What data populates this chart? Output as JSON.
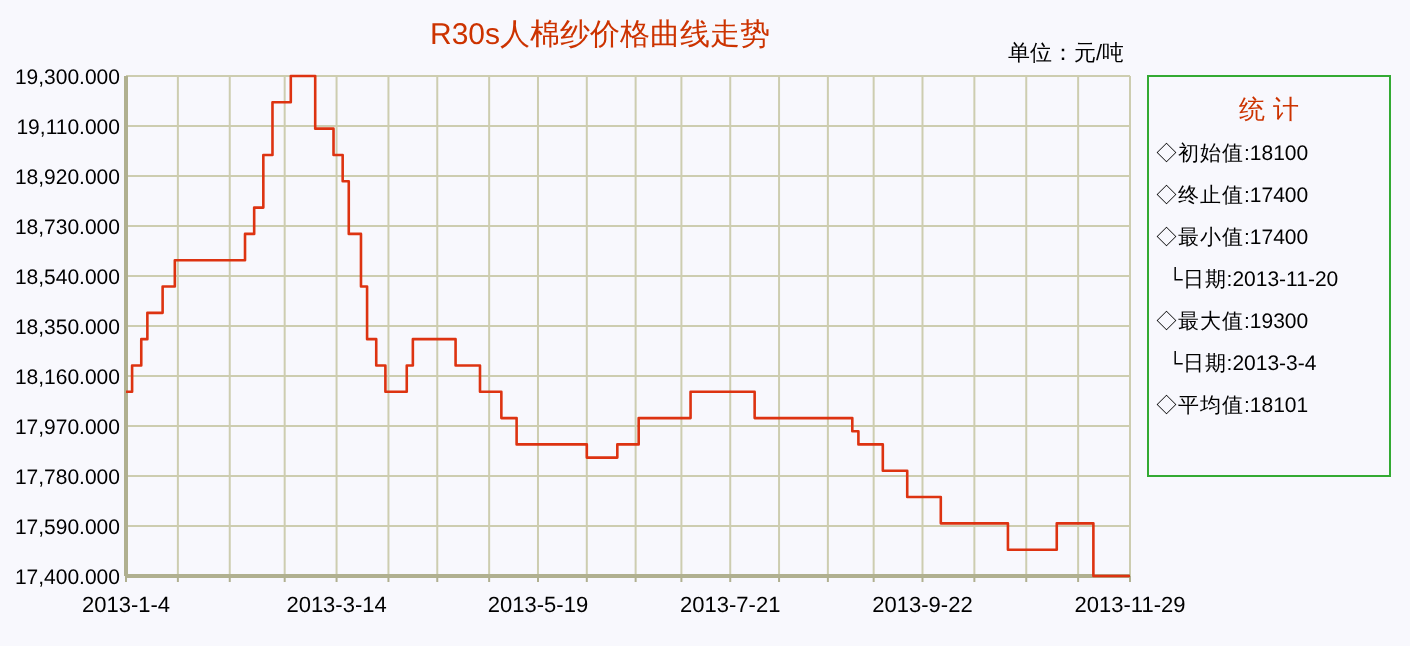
{
  "chart_data": [
    {
      "type": "step",
      "title": "R30s人棉纱价格曲线走势",
      "subtitle": "单位：元/吨",
      "x": [
        "2013-01-04",
        "2013-01-06",
        "2013-01-09",
        "2013-01-11",
        "2013-01-16",
        "2013-01-20",
        "2013-02-12",
        "2013-02-15",
        "2013-02-18",
        "2013-02-21",
        "2013-02-27",
        "2013-03-07",
        "2013-03-13",
        "2013-03-16",
        "2013-03-18",
        "2013-03-22",
        "2013-03-24",
        "2013-03-27",
        "2013-03-30",
        "2013-04-06",
        "2013-04-08",
        "2013-04-22",
        "2013-04-30",
        "2013-05-07",
        "2013-05-12",
        "2013-06-04",
        "2013-06-14",
        "2013-06-21",
        "2013-07-08",
        "2013-07-29",
        "2013-08-30",
        "2013-09-01",
        "2013-09-09",
        "2013-09-17",
        "2013-09-28",
        "2013-10-20",
        "2013-11-05",
        "2013-11-17",
        "2013-11-29"
      ],
      "values": [
        18100,
        18200,
        18300,
        18400,
        18500,
        18600,
        18700,
        18800,
        19000,
        19200,
        19300,
        19100,
        19000,
        18900,
        18700,
        18500,
        18300,
        18200,
        18100,
        18200,
        18300,
        18200,
        18100,
        18000,
        17900,
        17850,
        17900,
        18000,
        18100,
        18000,
        17950,
        17900,
        17800,
        17700,
        17600,
        17500,
        17600,
        17400,
        17400
      ],
      "color": "#dd3311",
      "grid": true,
      "xlim": [
        "2013-01-04",
        "2013-11-29"
      ],
      "xticks": [
        {
          "value": "2013-01-04",
          "label": "2013-1-4"
        },
        {
          "value": "2013-01-21",
          "label": null
        },
        {
          "value": "2013-02-07",
          "label": null
        },
        {
          "value": "2013-02-25",
          "label": null
        },
        {
          "value": "2013-03-14",
          "label": "2013-3-14"
        },
        {
          "value": "2013-03-31",
          "label": null
        },
        {
          "value": "2013-04-16",
          "label": null
        },
        {
          "value": "2013-05-03",
          "label": null
        },
        {
          "value": "2013-05-19",
          "label": "2013-5-19"
        },
        {
          "value": "2013-06-04",
          "label": null
        },
        {
          "value": "2013-06-20",
          "label": null
        },
        {
          "value": "2013-07-05",
          "label": null
        },
        {
          "value": "2013-07-21",
          "label": "2013-7-21"
        },
        {
          "value": "2013-08-06",
          "label": null
        },
        {
          "value": "2013-08-22",
          "label": null
        },
        {
          "value": "2013-09-06",
          "label": null
        },
        {
          "value": "2013-09-22",
          "label": "2013-9-22"
        },
        {
          "value": "2013-10-09",
          "label": null
        },
        {
          "value": "2013-10-26",
          "label": null
        },
        {
          "value": "2013-11-12",
          "label": null
        },
        {
          "value": "2013-11-29",
          "label": "2013-11-29"
        }
      ],
      "ylim": [
        17400,
        19300
      ],
      "yticks": [
        {
          "value": 17400,
          "label": "17,400.000"
        },
        {
          "value": 17590,
          "label": "17,590.000"
        },
        {
          "value": 17780,
          "label": "17,780.000"
        },
        {
          "value": 17970,
          "label": "17,970.000"
        },
        {
          "value": 18160,
          "label": "18,160.000"
        },
        {
          "value": 18350,
          "label": "18,350.000"
        },
        {
          "value": 18540,
          "label": "18,540.000"
        },
        {
          "value": 18730,
          "label": "18,730.000"
        },
        {
          "value": 18920,
          "label": "18,920.000"
        },
        {
          "value": 19110,
          "label": "19,110.000"
        },
        {
          "value": 19300,
          "label": "19,300.000"
        }
      ]
    },
    {
      "type": "other",
      "title": "统 计",
      "annotations": [
        "◇初始值:18100",
        "◇终止值:17400",
        "◇最小值:17400",
        "  └日期:2013-11-20",
        "◇最大值:19300",
        "  └日期:2013-3-4",
        "◇平均值:18101"
      ]
    }
  ]
}
